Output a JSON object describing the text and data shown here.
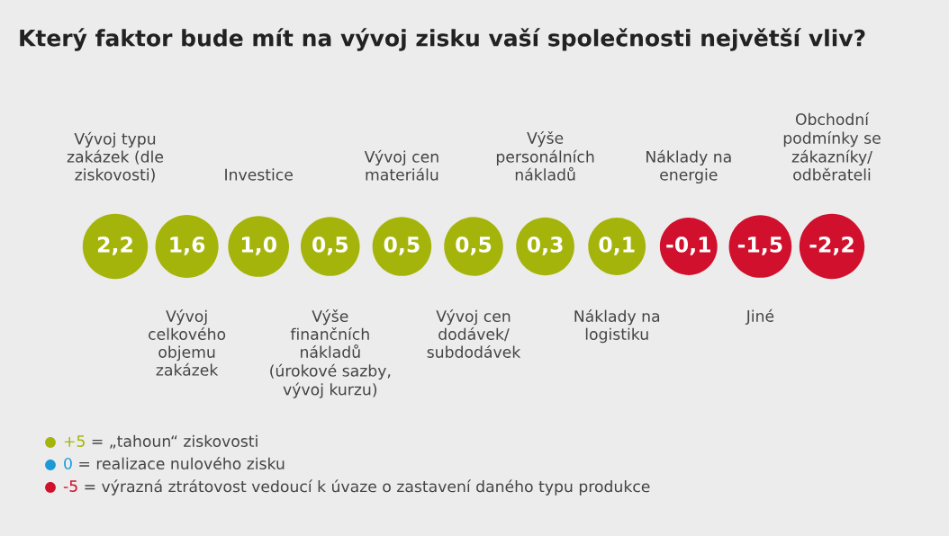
{
  "chart_data": {
    "type": "other",
    "title": "Který faktor bude mít na vývoj zisku vaší společnosti největší vliv?",
    "categories": [
      "Vývoj typu\nzakázek (dle\nziskovosti)",
      "Vývoj\ncelkového\nobjemu\nzakázek",
      "Investice",
      "Výše\nfinančních\nnákladů\n(úrokové sazby,\nvývoj kurzu)",
      "Vývoj cen\nmateriálu",
      "Vývoj cen\ndodávek/\nsubdodávek",
      "Výše\npersonálních\nnákladů",
      "Náklady na\nlogistiku",
      "Náklady na\nenergie",
      "Jiné",
      "Obchodní\npodmínky se\nzákazníky/\nodběrateli"
    ],
    "values": [
      2.2,
      1.6,
      1.0,
      0.5,
      0.5,
      0.5,
      0.3,
      0.1,
      -0.1,
      -1.5,
      -2.2
    ],
    "value_labels": [
      "2,2",
      "1,6",
      "1,0",
      "0,5",
      "0,5",
      "0,5",
      "0,3",
      "0,1",
      "-0,1",
      "-1,5",
      "-2,2"
    ],
    "colors": [
      "#a5b40a",
      "#a5b40a",
      "#a5b40a",
      "#a5b40a",
      "#a5b40a",
      "#a5b40a",
      "#a5b40a",
      "#a5b40a",
      "#d0102c",
      "#d0102c",
      "#d0102c"
    ],
    "annotations": [
      "+5 = „tahoun“ ziskovosti",
      "0 = realizace nulového zisku",
      "-5 = výrazná ztrátovost vedoucí k úvaze o zastavení daného typu produkce"
    ]
  }
}
